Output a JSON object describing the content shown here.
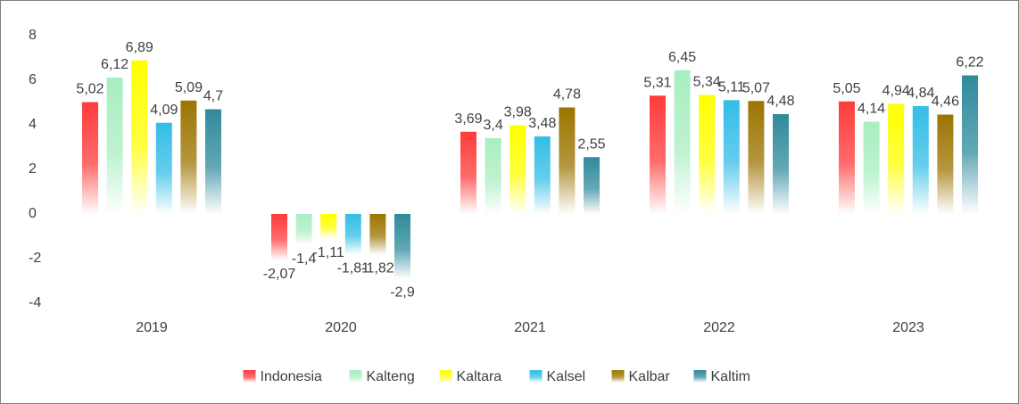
{
  "chart_data": {
    "type": "bar",
    "categories": [
      "2019",
      "2020",
      "2021",
      "2022",
      "2023"
    ],
    "ylim": [
      -4,
      8
    ],
    "yticks": [
      -4,
      -2,
      0,
      2,
      4,
      6,
      8
    ],
    "grid": false,
    "legend": "bottom",
    "series": [
      {
        "name": "Indonesia",
        "color": "#ff3b3b",
        "values": [
          5.02,
          -2.07,
          3.69,
          5.31,
          5.05
        ],
        "value_labels": [
          "5,02",
          "-2,07",
          "3,69",
          "5,31",
          "5,05"
        ]
      },
      {
        "name": "Kalteng",
        "color": "#a8eec0",
        "values": [
          6.12,
          -1.4,
          3.4,
          6.45,
          4.14
        ],
        "value_labels": [
          "6,12",
          "-1,4",
          "3,4",
          "6,45",
          "4,14"
        ]
      },
      {
        "name": "Kaltara",
        "color": "#ffff00",
        "values": [
          6.89,
          -1.11,
          3.98,
          5.34,
          4.94
        ],
        "value_labels": [
          "6,89",
          "-1,11",
          "3,98",
          "5,34",
          "4,94"
        ]
      },
      {
        "name": "Kalsel",
        "color": "#33bde6",
        "values": [
          4.09,
          -1.81,
          3.48,
          5.11,
          4.84
        ],
        "value_labels": [
          "4,09",
          "-1,81",
          "3,48",
          "5,11",
          "4,84"
        ]
      },
      {
        "name": "Kalbar",
        "color": "#9c7400",
        "values": [
          5.09,
          -1.82,
          4.78,
          5.07,
          4.46
        ],
        "value_labels": [
          "5,09",
          "-1,82",
          "4,78",
          "5,07",
          "4,46"
        ]
      },
      {
        "name": "Kaltim",
        "color": "#2f8a9c",
        "values": [
          4.7,
          -2.9,
          2.55,
          4.48,
          6.22
        ],
        "value_labels": [
          "4,7",
          "-2,9",
          "2,55",
          "4,48",
          "6,22"
        ]
      }
    ]
  }
}
